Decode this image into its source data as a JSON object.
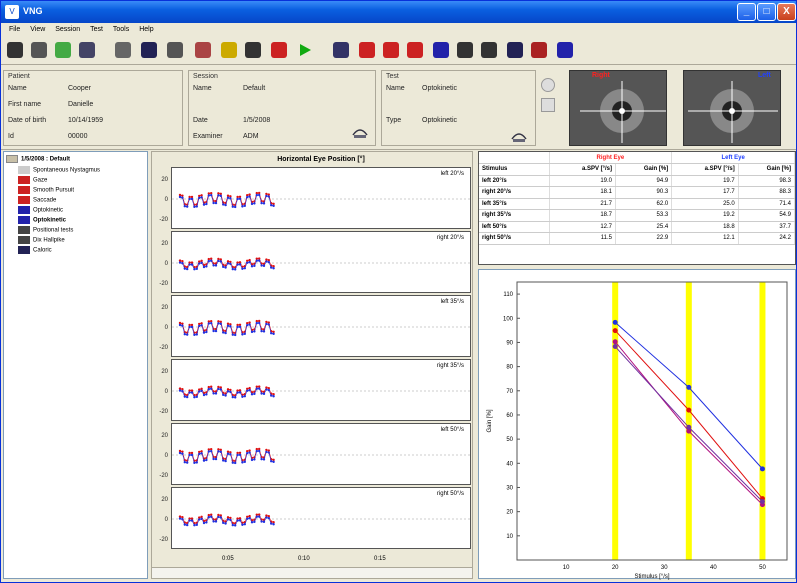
{
  "window": {
    "title": "VNG",
    "controls": [
      "_",
      "□",
      "X"
    ]
  },
  "menu": [
    "File",
    "View",
    "Session",
    "Test",
    "Tools",
    "Help"
  ],
  "toolbar_icons": [
    "new-icon",
    "open-icon",
    "wizard-icon",
    "database-icon",
    "print-preview-icon",
    "save-icon",
    "print-icon",
    "edit-icon",
    "light-icon",
    "camera-icon",
    "calibrate-icon",
    "play-icon",
    "spontaneous-icon",
    "gaze-icon",
    "smooth-pursuit-icon",
    "saccade-icon",
    "optokinetic-icon",
    "positional-icon",
    "dix-hallpike-icon",
    "caloric-icon",
    "head-impulse-icon",
    "rotary-icon"
  ],
  "patient": {
    "header": "Patient",
    "fields": [
      {
        "label": "Name",
        "value": "Cooper"
      },
      {
        "label": "First name",
        "value": "Danielle"
      },
      {
        "label": "Date of birth",
        "value": "10/14/1959"
      },
      {
        "label": "Id",
        "value": "00000"
      }
    ]
  },
  "session": {
    "header": "Session",
    "name_label": "Name",
    "name_value": "Default",
    "date_label": "Date",
    "date_value": "1/5/2008",
    "examiner_label": "Examiner",
    "examiner_value": "ADM"
  },
  "test": {
    "header": "Test",
    "name_label": "Name",
    "name_value": "Optokinetic",
    "type_label": "Type",
    "type_value": "Optokinetic"
  },
  "eyes": {
    "right_label": "Right",
    "left_label": "Left"
  },
  "tree": {
    "root": "1/5/2008 : Default",
    "items": [
      "Spontaneous Nystagmus",
      "Gaze",
      "Smooth Pursuit",
      "Saccade",
      "Optokinetic",
      "Optokinetic",
      "Positional tests",
      "Dix Hallpike",
      "Caloric"
    ]
  },
  "traces": {
    "title": "Horizontal Eye Position [°]",
    "yticks": [
      "20",
      "0",
      "-20"
    ],
    "labels": [
      "left 20°/s",
      "right 20°/s",
      "left 35°/s",
      "right 35°/s",
      "left 50°/s",
      "right 50°/s"
    ],
    "xticks": [
      "0:05",
      "0:10",
      "0:15"
    ]
  },
  "table": {
    "right_eye": "Right Eye",
    "left_eye": "Left Eye",
    "headers": [
      "Stimulus",
      "a.SPV [°/s]",
      "Gain [%]",
      "a.SPV [°/s]",
      "Gain [%]"
    ],
    "rows": [
      [
        "left 20°/s",
        "19.0",
        "94.9",
        "19.7",
        "98.3"
      ],
      [
        "right 20°/s",
        "18.1",
        "90.3",
        "17.7",
        "88.3"
      ],
      [
        "left 35°/s",
        "21.7",
        "62.0",
        "25.0",
        "71.4"
      ],
      [
        "right 35°/s",
        "18.7",
        "53.3",
        "19.2",
        "54.9"
      ],
      [
        "left 50°/s",
        "12.7",
        "25.4",
        "18.8",
        "37.7"
      ],
      [
        "right 50°/s",
        "11.5",
        "22.9",
        "12.1",
        "24.2"
      ]
    ]
  },
  "chart_data": {
    "type": "line",
    "xlabel": "Stimulus [°/s]",
    "ylabel": "Gain [%]",
    "xlim": [
      0,
      55
    ],
    "ylim": [
      0,
      115
    ],
    "xticks": [
      10,
      20,
      30,
      40,
      50
    ],
    "yticks": [
      10,
      20,
      30,
      40,
      50,
      60,
      70,
      80,
      90,
      100,
      110
    ],
    "highlight_x": [
      20,
      35,
      50
    ],
    "highlight_color": "#ffff00",
    "series": [
      {
        "color": "#e01010",
        "x": [
          20,
          35,
          50
        ],
        "y": [
          94.9,
          62.0,
          25.4
        ]
      },
      {
        "color": "#b01080",
        "x": [
          20,
          35,
          50
        ],
        "y": [
          90.3,
          53.3,
          22.9
        ]
      },
      {
        "color": "#2030e0",
        "x": [
          20,
          35,
          50
        ],
        "y": [
          98.3,
          71.4,
          37.7
        ]
      },
      {
        "color": "#7030a0",
        "x": [
          20,
          35,
          50
        ],
        "y": [
          88.3,
          54.9,
          24.2
        ]
      }
    ]
  }
}
